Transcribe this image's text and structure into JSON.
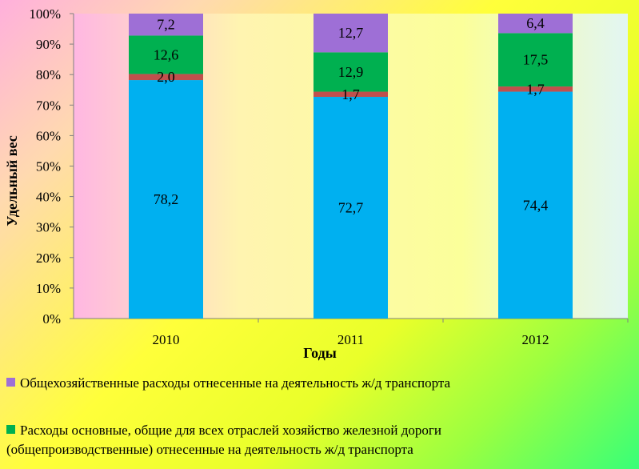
{
  "chart_data": {
    "type": "bar",
    "stacked": true,
    "categories": [
      "2010",
      "2011",
      "2012"
    ],
    "series": [
      {
        "name": "",
        "values": [
          78.2,
          72.7,
          74.4
        ],
        "labels": [
          "78,2",
          "72,7",
          "74,4"
        ],
        "color": "#00b0f0"
      },
      {
        "name": "",
        "values": [
          2.0,
          1.7,
          1.7
        ],
        "labels": [
          "2,0",
          "1,7",
          "1,7"
        ],
        "color": "#c0504d"
      },
      {
        "name": "Расходы основные, общие для всех отраслей хозяйство железной дороги (общепроизводственные) отнесенные на деятельность ж/д транспорта",
        "values": [
          12.6,
          12.9,
          17.5
        ],
        "labels": [
          "12,6",
          "12,9",
          "17,5"
        ],
        "color": "#00b050"
      },
      {
        "name": "Общехозяйственные расходы отнесенные на деятельность ж/д транспорта",
        "values": [
          7.2,
          12.7,
          6.4
        ],
        "labels": [
          "7,2",
          "12,7",
          "6,4"
        ],
        "color": "#9e6fd6"
      }
    ],
    "xlabel": "Годы",
    "ylabel": "Удельный вес",
    "ylim": [
      0,
      100
    ],
    "yticks": [
      "0%",
      "10%",
      "20%",
      "30%",
      "40%",
      "50%",
      "60%",
      "70%",
      "80%",
      "90%",
      "100%"
    ],
    "grid": false,
    "legend_position": "bottom"
  },
  "legend": {
    "item1": "Общехозяйственные расходы отнесенные на деятельность ж/д транспорта",
    "item2": "Расходы основные, общие для всех отраслей хозяйство железной дороги\n(общепроизводственные) отнесенные на деятельность ж/д транспорта"
  }
}
